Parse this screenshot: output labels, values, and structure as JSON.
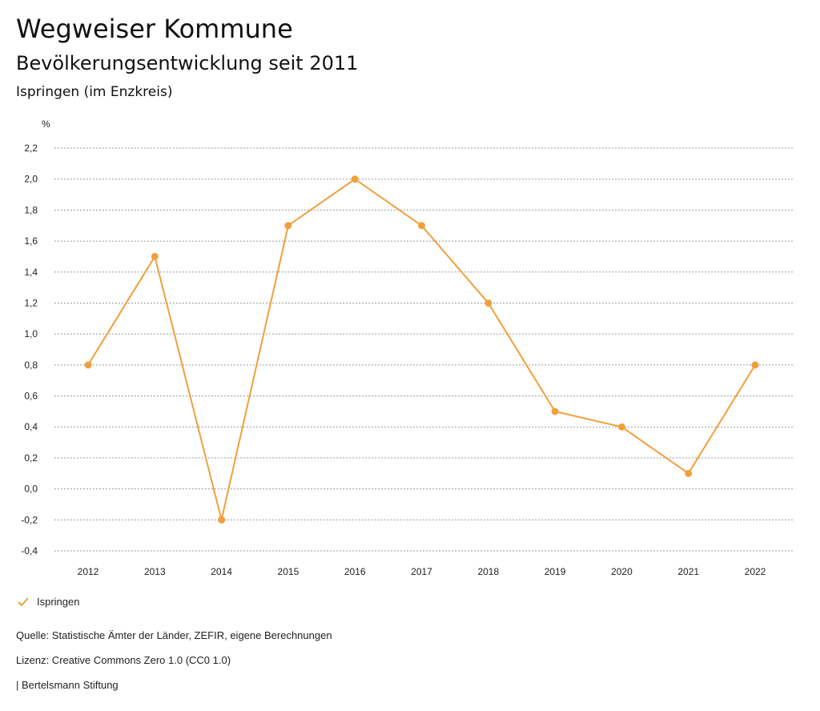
{
  "header": {
    "title": "Wegweiser Kommune",
    "subtitle": "Bevölkerungsentwicklung seit 2011",
    "place": "Ispringen (im Enzkreis)"
  },
  "chart_data": {
    "type": "line",
    "title": "Bevölkerungsentwicklung seit 2011",
    "ylabel": "%",
    "xlabel": "",
    "ylim": [
      -0.4,
      2.2
    ],
    "yticks": [
      2.2,
      2.0,
      1.8,
      1.6,
      1.4,
      1.2,
      1.0,
      0.8,
      0.6,
      0.4,
      0.2,
      0.0,
      -0.2,
      -0.4
    ],
    "ytick_labels": [
      "2,2",
      "2,0",
      "1,8",
      "1,6",
      "1,4",
      "1,2",
      "1,0",
      "0,8",
      "0,6",
      "0,4",
      "0,2",
      "0,0",
      "-0,2",
      "-0,4"
    ],
    "categories": [
      "2012",
      "2013",
      "2014",
      "2015",
      "2016",
      "2017",
      "2018",
      "2019",
      "2020",
      "2021",
      "2022"
    ],
    "series": [
      {
        "name": "Ispringen",
        "color": "#f0a03c",
        "values": [
          0.8,
          1.5,
          -0.2,
          1.7,
          2.0,
          1.7,
          1.2,
          0.5,
          0.4,
          0.1,
          0.8
        ]
      }
    ],
    "grid": true,
    "legend": "bottom-left"
  },
  "legend": {
    "label": "Ispringen",
    "icon": "check-icon"
  },
  "footer": {
    "source": "Quelle: Statistische Ämter der Länder, ZEFIR, eigene Berechnungen",
    "license": "Lizenz: Creative Commons Zero 1.0 (CC0 1.0)",
    "organization": "| Bertelsmann Stiftung"
  }
}
